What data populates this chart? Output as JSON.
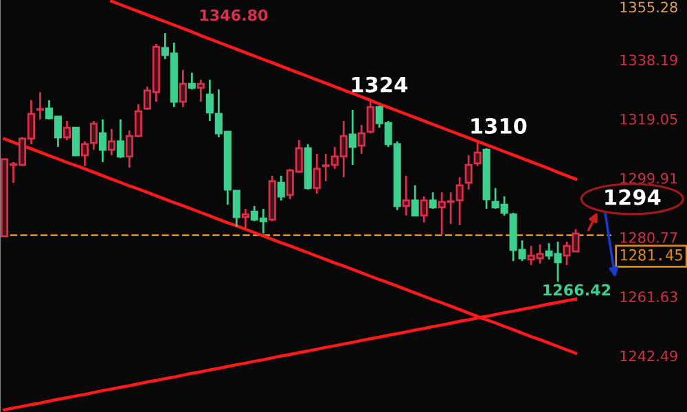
{
  "chart_data": {
    "type": "candlestick",
    "categories": [
      null,
      null,
      null,
      null,
      null,
      null,
      null,
      null,
      null,
      null,
      null,
      null,
      null,
      null,
      null,
      null,
      null,
      null,
      null,
      null,
      null,
      null,
      null,
      null,
      null,
      null,
      null,
      null,
      null,
      null,
      null,
      null,
      null,
      null,
      null,
      null,
      null,
      null,
      null,
      null,
      null,
      null,
      null,
      null,
      null,
      null,
      null,
      null,
      null,
      null,
      null,
      null,
      null,
      null,
      null,
      null,
      null,
      null,
      null,
      null,
      null,
      null,
      null,
      null,
      null
    ],
    "ohlc": [
      [
        1281.1,
        1306.0,
        1281.1,
        1306.0
      ],
      [
        1304.2,
        1305.1,
        1298.4,
        1304.2
      ],
      [
        1304.2,
        1313.1,
        1303.8,
        1312.7
      ],
      [
        1312.7,
        1325.1,
        1310.9,
        1320.7
      ],
      [
        1322.0,
        1327.7,
        1318.9,
        1322.0
      ],
      [
        1322.4,
        1325.1,
        1318.9,
        1319.3
      ],
      [
        1319.8,
        1319.8,
        1310.0,
        1313.1
      ],
      [
        1313.1,
        1318.4,
        1312.2,
        1316.2
      ],
      [
        1316.2,
        1316.2,
        1307.3,
        1307.3
      ],
      [
        1307.3,
        1311.8,
        1303.8,
        1310.9
      ],
      [
        1311.3,
        1318.4,
        1309.1,
        1317.5
      ],
      [
        1314.4,
        1318.9,
        1305.1,
        1309.1
      ],
      [
        1309.1,
        1315.8,
        1307.3,
        1311.8
      ],
      [
        1311.8,
        1318.9,
        1306.4,
        1306.9
      ],
      [
        1306.9,
        1315.3,
        1303.3,
        1313.5
      ],
      [
        1313.5,
        1323.8,
        1313.1,
        1321.5
      ],
      [
        1322.4,
        1329.5,
        1322.0,
        1328.2
      ],
      [
        1327.7,
        1343.3,
        1324.6,
        1342.4
      ],
      [
        1342.0,
        1346.8,
        1338.4,
        1339.7
      ],
      [
        1340.2,
        1343.7,
        1322.9,
        1324.6
      ],
      [
        1324.6,
        1334.9,
        1322.9,
        1330.4
      ],
      [
        1330.4,
        1334.0,
        1328.6,
        1329.1
      ],
      [
        1329.1,
        1331.7,
        1324.6,
        1330.4
      ],
      [
        1326.9,
        1331.7,
        1318.4,
        1321.1
      ],
      [
        1320.7,
        1328.6,
        1313.1,
        1314.4
      ],
      [
        1314.9,
        1314.9,
        1291.3,
        1296.2
      ],
      [
        1295.8,
        1295.8,
        1284.2,
        1287.3
      ],
      [
        1287.3,
        1290.0,
        1283.4,
        1288.2
      ],
      [
        1289.1,
        1290.9,
        1286.0,
        1286.5
      ],
      [
        1286.9,
        1290.0,
        1282.0,
        1286.0
      ],
      [
        1286.5,
        1300.7,
        1286.0,
        1298.9
      ],
      [
        1298.4,
        1300.7,
        1292.7,
        1294.0
      ],
      [
        1294.5,
        1302.9,
        1293.1,
        1302.4
      ],
      [
        1302.0,
        1312.2,
        1301.6,
        1309.6
      ],
      [
        1309.6,
        1310.9,
        1296.2,
        1296.7
      ],
      [
        1296.7,
        1307.8,
        1294.9,
        1302.9
      ],
      [
        1303.8,
        1307.8,
        1298.9,
        1303.8
      ],
      [
        1304.2,
        1310.0,
        1302.9,
        1306.9
      ],
      [
        1306.9,
        1318.4,
        1300.2,
        1313.5
      ],
      [
        1314.0,
        1322.0,
        1304.2,
        1310.0
      ],
      [
        1310.4,
        1317.1,
        1307.8,
        1314.4
      ],
      [
        1314.9,
        1325.1,
        1314.4,
        1322.9
      ],
      [
        1322.9,
        1323.3,
        1316.2,
        1317.7
      ],
      [
        1317.7,
        1318.4,
        1310.0,
        1310.9
      ],
      [
        1310.9,
        1311.8,
        1289.6,
        1290.9
      ],
      [
        1290.9,
        1300.7,
        1287.8,
        1292.7
      ],
      [
        1292.7,
        1297.6,
        1287.8,
        1287.8
      ],
      [
        1287.8,
        1294.0,
        1285.6,
        1292.7
      ],
      [
        1292.7,
        1295.3,
        1290.0,
        1290.5
      ],
      [
        1290.5,
        1295.3,
        1281.6,
        1292.2
      ],
      [
        1292.2,
        1295.3,
        1285.1,
        1292.2
      ],
      [
        1292.7,
        1300.2,
        1284.7,
        1297.6
      ],
      [
        1298.4,
        1307.3,
        1296.2,
        1304.2
      ],
      [
        1304.7,
        1311.3,
        1303.8,
        1308.2
      ],
      [
        1309.1,
        1309.6,
        1290.0,
        1293.1
      ],
      [
        1292.2,
        1296.7,
        1290.0,
        1290.5
      ],
      [
        1291.3,
        1294.0,
        1287.8,
        1288.7
      ],
      [
        1288.2,
        1288.7,
        1273.1,
        1276.7
      ],
      [
        1276.7,
        1279.8,
        1273.1,
        1274.0
      ],
      [
        1273.6,
        1278.0,
        1271.8,
        1274.9
      ],
      [
        1274.0,
        1278.5,
        1272.3,
        1275.4
      ],
      [
        1276.2,
        1278.9,
        1273.6,
        1274.9
      ],
      [
        1275.4,
        1279.4,
        1266.42,
        1272.7
      ],
      [
        1274.9,
        1279.4,
        1271.8,
        1278.0
      ],
      [
        1276.2,
        1283.4,
        1276.2,
        1282.0
      ]
    ],
    "series": [
      {
        "type": "line",
        "color": "#ff1a1a",
        "values": [
          null,
          null,
          null,
          null,
          null,
          null,
          null,
          null,
          null,
          null,
          null,
          null,
          1357.1,
          1356.0,
          1354.9,
          1353.8,
          1352.7,
          1351.6,
          1350.5,
          1349.4,
          1348.3,
          1347.2,
          1346.0,
          1344.9,
          1343.8,
          1342.7,
          1341.6,
          1340.5,
          1339.4,
          1338.3,
          1337.2,
          1336.1,
          1335.0,
          1333.9,
          1332.8,
          1331.7,
          1330.6,
          1329.5,
          1328.4,
          1327.3,
          1326.2,
          1325.1,
          1323.9,
          1322.8,
          1321.7,
          1320.6,
          1319.5,
          1318.4,
          1317.3,
          1316.2,
          1315.1,
          1314.0,
          1312.9,
          1311.8,
          1310.7,
          1309.6,
          1308.5,
          1307.4,
          1306.3,
          1305.2,
          1304.1,
          1303.0,
          1301.8,
          1300.7,
          1299.6
        ]
      },
      {
        "type": "line",
        "color": "#ff1a1a",
        "values": [
          1312.6,
          1311.5,
          1310.4,
          1309.4,
          1308.3,
          1307.2,
          1306.1,
          1305.0,
          1304.0,
          1302.9,
          1301.8,
          1300.7,
          1299.6,
          1298.5,
          1297.4,
          1296.4,
          1295.3,
          1294.2,
          1293.1,
          1292.0,
          1291.0,
          1289.9,
          1288.8,
          1287.7,
          1286.6,
          1285.5,
          1284.5,
          1283.4,
          1282.3,
          1281.2,
          1280.1,
          1279.0,
          1278.0,
          1276.9,
          1275.8,
          1274.7,
          1273.6,
          1272.5,
          1271.5,
          1270.4,
          1269.3,
          1268.2,
          1267.1,
          1266.1,
          1265.0,
          1263.9,
          1262.8,
          1261.7,
          1260.6,
          1259.6,
          1258.5,
          1257.4,
          1256.3,
          1255.2,
          1254.1,
          1253.1,
          1252.0,
          1250.9,
          1249.8,
          1248.7,
          1247.7,
          1246.6,
          1245.5,
          1244.4,
          1243.3
        ]
      },
      {
        "type": "line",
        "color": "#ff1a1a",
        "values": [
          1225.0,
          1225.6,
          1226.1,
          1226.7,
          1227.2,
          1227.8,
          1228.4,
          1228.9,
          1229.5,
          1230.0,
          1230.6,
          1231.2,
          1231.7,
          1232.3,
          1232.8,
          1233.4,
          1234.0,
          1234.5,
          1235.1,
          1235.6,
          1236.2,
          1236.8,
          1237.3,
          1237.9,
          1238.4,
          1239.0,
          1239.6,
          1240.1,
          1240.7,
          1241.2,
          1241.8,
          1242.4,
          1242.9,
          1243.5,
          1244.0,
          1244.6,
          1245.2,
          1245.7,
          1246.3,
          1246.8,
          1247.4,
          1248.0,
          1248.5,
          1249.1,
          1249.6,
          1250.2,
          1250.8,
          1251.3,
          1251.9,
          1252.4,
          1253.0,
          1253.6,
          1254.1,
          1254.7,
          1255.2,
          1255.8,
          1256.4,
          1256.9,
          1257.5,
          1258.0,
          1258.6,
          1259.2,
          1259.7,
          1260.3,
          1260.8
        ]
      }
    ],
    "ylim": [
      1224.3,
      1357.5
    ],
    "yticks": [
      1355.28,
      1338.19,
      1319.05,
      1299.91,
      1280.77,
      1261.63,
      1242.49
    ],
    "tick_labels": "y",
    "ref_lines": [
      {
        "axis": "y",
        "value": 1281.45,
        "label": "1281.45",
        "color": "#e08a1e",
        "line_style": "dashed"
      }
    ],
    "annotations": [
      "1346.80",
      {
        "text": "1324",
        "y": 1324
      },
      {
        "text": "1310",
        "y": 1310
      },
      "1294",
      "1266.42"
    ],
    "grid": false,
    "legend": false
  }
}
